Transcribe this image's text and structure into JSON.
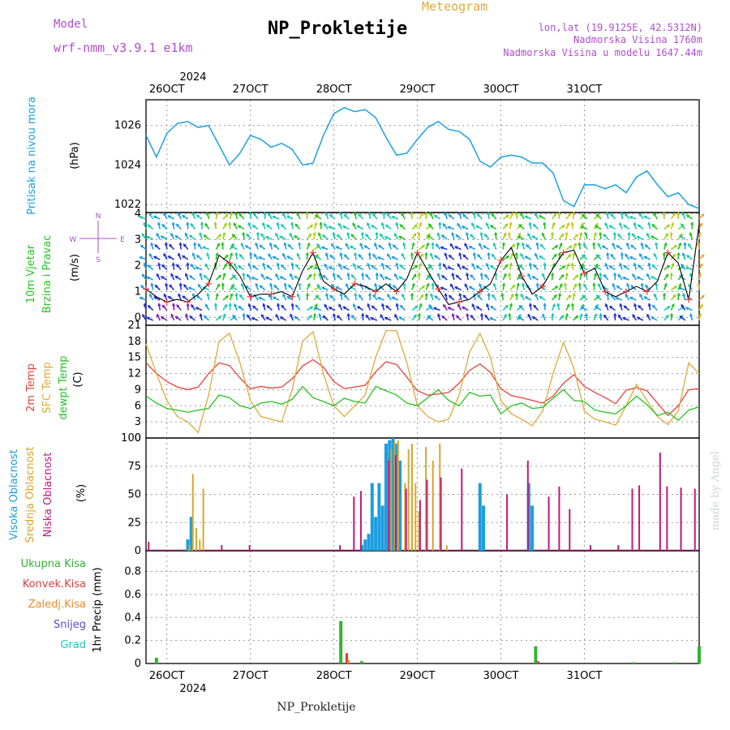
{
  "header": {
    "model_label": "Model",
    "model_name": "wrf-nmm_v3.9.1 e1km",
    "title": "NP_Prokletije",
    "meteogram": "Meteogram",
    "lonlat": "lon,lat (19.9125E, 42.5312N)",
    "altitude": "Nadmorska Visina 1760m",
    "altitude_model": "Nadmorska Visina u modelu 1647.44m",
    "year_top": "2024",
    "year_bottom": "2024",
    "footer": "NP_Prokletije",
    "watermark": "made by Angel"
  },
  "day_labels": [
    "26OCT",
    "27OCT",
    "28OCT",
    "29OCT",
    "30OCT",
    "31OCT"
  ],
  "panel_labels": {
    "pressure": [
      "Pritisak na nivou mora",
      "(hPa)"
    ],
    "wind": [
      "10m Vjetar",
      "Brzina i Pravac",
      "(m/s)"
    ],
    "wind_rose": [
      "N",
      "E",
      "W",
      "S"
    ],
    "temp": [
      "2m Temp",
      "SFC Temp",
      "dewpt Temp",
      "(C)"
    ],
    "cloud": [
      "Visoka Oblacnost",
      "Srednja Oblacnost",
      "Niska Oblacnost",
      "(%)"
    ],
    "precip": [
      "Ukupna Kisa",
      "Konvek.Kisa",
      "Zaledj.Kisa",
      "Snijeg",
      "Grad",
      "1hr Precip (mm)"
    ]
  },
  "colors": {
    "pressure": "#1aa0e6",
    "t2m": "#e8413c",
    "tsfc": "#e0a93a",
    "dewpt": "#22c41e",
    "cloud_high": "#1a9ee0",
    "cloud_mid": "#d9a52b",
    "cloud_low": "#c2177a",
    "rain_total": "#2fb52f",
    "rain_conv": "#e23b3b",
    "rain_frz": "#f08a2a",
    "snow": "#5a4ccf",
    "hail": "#2ac0c0",
    "purple_text": "#b24cd1",
    "orange_text": "#e0a93a"
  },
  "chart_data": [
    {
      "type": "line",
      "name": "pressure",
      "ylim": [
        1021.6,
        1027.3
      ],
      "yticks": [
        1022,
        1024,
        1026
      ],
      "x_hours": [
        0,
        3,
        6,
        9,
        12,
        15,
        18,
        21,
        24,
        27,
        30,
        33,
        36,
        39,
        42,
        45,
        48,
        51,
        54,
        57,
        60,
        63,
        66,
        69,
        72,
        75,
        78,
        81,
        84,
        87,
        90,
        93,
        96,
        99,
        102,
        105,
        108,
        111,
        114,
        117,
        120,
        123,
        126,
        129,
        132,
        135,
        138,
        141,
        144,
        147,
        150,
        153,
        156,
        159
      ],
      "values": [
        1025.5,
        1024.4,
        1025.6,
        1026.1,
        1026.2,
        1025.9,
        1026.0,
        1025.0,
        1024.0,
        1024.6,
        1025.5,
        1025.3,
        1024.9,
        1025.1,
        1024.8,
        1024.0,
        1024.1,
        1025.5,
        1026.6,
        1026.9,
        1026.7,
        1026.8,
        1026.4,
        1025.4,
        1024.5,
        1024.6,
        1025.3,
        1025.9,
        1026.2,
        1025.8,
        1025.7,
        1025.3,
        1024.2,
        1023.9,
        1024.4,
        1024.5,
        1024.4,
        1024.1,
        1024.1,
        1023.6,
        1022.2,
        1021.9,
        1023.0,
        1023.0,
        1022.8,
        1023.0,
        1022.6,
        1023.4,
        1023.7,
        1023.0,
        1022.4,
        1022.6,
        1022.0,
        1021.8
      ]
    },
    {
      "type": "line",
      "name": "10m wind speed",
      "ylim": [
        -0.3,
        4.05
      ],
      "yticks": [
        0,
        1,
        2,
        3,
        4
      ],
      "x_hours": [
        0,
        3,
        6,
        9,
        12,
        15,
        18,
        21,
        24,
        27,
        30,
        33,
        36,
        39,
        42,
        45,
        48,
        51,
        54,
        57,
        60,
        63,
        66,
        69,
        72,
        75,
        78,
        81,
        84,
        87,
        90,
        93,
        96,
        99,
        102,
        105,
        108,
        111,
        114,
        117,
        120,
        123,
        126,
        129,
        132,
        135,
        138,
        141,
        144,
        147,
        150,
        153,
        156,
        159
      ],
      "values": [
        1.1,
        0.8,
        0.6,
        0.7,
        0.6,
        0.9,
        1.3,
        2.4,
        2.1,
        1.6,
        0.8,
        0.9,
        0.9,
        1.0,
        0.8,
        1.8,
        2.5,
        1.4,
        1.1,
        0.9,
        1.3,
        1.2,
        1.0,
        1.3,
        1.0,
        1.5,
        2.5,
        1.8,
        1.1,
        0.5,
        0.6,
        0.7,
        1.0,
        1.3,
        2.2,
        2.7,
        1.6,
        0.9,
        1.2,
        1.9,
        2.5,
        2.6,
        1.7,
        1.9,
        1.0,
        0.8,
        1.0,
        1.2,
        1.0,
        1.4,
        2.5,
        2.1,
        0.7,
        3.6
      ]
    },
    {
      "type": "line",
      "name": "temperature",
      "ylim": [
        0,
        21
      ],
      "yticks": [
        0,
        3,
        6,
        9,
        12,
        15,
        18,
        21
      ],
      "x_hours": [
        0,
        3,
        6,
        9,
        12,
        15,
        18,
        21,
        24,
        27,
        30,
        33,
        36,
        39,
        42,
        45,
        48,
        51,
        54,
        57,
        60,
        63,
        66,
        69,
        72,
        75,
        78,
        81,
        84,
        87,
        90,
        93,
        96,
        99,
        102,
        105,
        108,
        111,
        114,
        117,
        120,
        123,
        126,
        129,
        132,
        135,
        138,
        141,
        144,
        147,
        150,
        153,
        156,
        159
      ],
      "series": [
        {
          "name": "2m Temp",
          "values": [
            14,
            12,
            10.5,
            9.5,
            9,
            9.5,
            12,
            14,
            13.5,
            11.2,
            9.2,
            9.6,
            9.3,
            9.5,
            11,
            13.4,
            14.6,
            13.2,
            10.5,
            9.2,
            9.5,
            9.8,
            12.3,
            14.2,
            13.7,
            11.3,
            8.8,
            8,
            8.2,
            8.5,
            10.2,
            12.6,
            13.8,
            12.2,
            9.2,
            7.9,
            7.5,
            7,
            6.5,
            7.8,
            10.2,
            11.8,
            9.6,
            8.5,
            7.5,
            6.4,
            8.9,
            9.4,
            8.8,
            6.5,
            4.2,
            6,
            9,
            9.2
          ]
        },
        {
          "name": "SFC Temp",
          "values": [
            17.5,
            12,
            7,
            4,
            3,
            1,
            8,
            18,
            19.5,
            14,
            7,
            4,
            3.5,
            3,
            9,
            18,
            19.8,
            12,
            6,
            4,
            6,
            8,
            15,
            20,
            20,
            14,
            6,
            4,
            3,
            3.5,
            8,
            16,
            19.5,
            15,
            7,
            4.5,
            3.5,
            2.3,
            5,
            12,
            17.8,
            13,
            5,
            3.5,
            3,
            2.4,
            6,
            10,
            7,
            4,
            2.5,
            5,
            14,
            12
          ]
        },
        {
          "name": "dewpt Temp",
          "values": [
            7.8,
            6.5,
            5.5,
            5.2,
            4.8,
            5.2,
            5.5,
            8,
            7.5,
            6,
            5.5,
            6.5,
            6.8,
            6.3,
            7.2,
            9.6,
            7.5,
            6.8,
            6,
            7.4,
            6.8,
            6.5,
            9.6,
            8.8,
            8,
            6.5,
            6,
            7.5,
            9,
            7,
            6,
            8.5,
            7.8,
            8,
            4.5,
            6,
            6.5,
            5.5,
            5.7,
            7.4,
            9,
            7,
            6.8,
            5.2,
            4.8,
            4.5,
            6,
            7.8,
            6.2,
            4.2,
            4.8,
            3.3,
            5.2,
            5.8
          ]
        }
      ]
    },
    {
      "type": "bar",
      "name": "cloud cover",
      "ylim": [
        0,
        100
      ],
      "yticks": [
        0,
        25,
        50,
        75,
        100
      ],
      "series": [
        {
          "name": "Visoka Oblacnost",
          "x_hours": [
            12,
            13,
            62,
            63,
            64,
            65,
            66,
            67,
            68,
            69,
            70,
            71,
            72,
            73,
            96,
            97,
            110,
            111
          ],
          "values": [
            10,
            30,
            5,
            10,
            15,
            60,
            30,
            60,
            40,
            95,
            98,
            100,
            95,
            80,
            60,
            40,
            60,
            40
          ]
        },
        {
          "name": "Srednja Oblacnost",
          "x_hours": [
            12,
            13,
            14,
            15,
            16,
            70,
            71,
            72,
            74,
            75,
            76,
            77,
            78,
            80,
            82,
            84,
            86
          ],
          "values": [
            5,
            68,
            20,
            10,
            55,
            90,
            97,
            98,
            60,
            90,
            95,
            60,
            35,
            92,
            80,
            95,
            5
          ]
        },
        {
          "name": "Niska Oblacnost",
          "x_hours": [
            1,
            22,
            30,
            56,
            60,
            62,
            70,
            72,
            75,
            79,
            81,
            85,
            91,
            104,
            110,
            116,
            119,
            122,
            128,
            136,
            140,
            142,
            148,
            150,
            154,
            158
          ],
          "values": [
            8,
            5,
            5,
            5,
            48,
            53,
            80,
            85,
            55,
            45,
            63,
            65,
            73,
            50,
            80,
            48,
            57,
            37,
            5,
            5,
            55,
            58,
            87,
            57,
            56,
            55
          ]
        }
      ]
    },
    {
      "type": "bar",
      "name": "1hr precipitation",
      "ylim": [
        0,
        0.98
      ],
      "yticks": [
        0,
        0.2,
        0.4,
        0.6,
        0.8
      ],
      "series": [
        {
          "name": "Ukupna Kisa",
          "x_hours": [
            3,
            56,
            62,
            112,
            140,
            152,
            159
          ],
          "values": [
            0.05,
            0.37,
            0.02,
            0.15,
            0.01,
            0.01,
            0.15
          ]
        },
        {
          "name": "Konvek.Kisa",
          "x_hours": [
            57,
            112
          ],
          "values": [
            0.09,
            0.02
          ]
        },
        {
          "name": "Zaledj.Kisa",
          "x_hours": [
            58
          ],
          "values": [
            0.03
          ]
        }
      ]
    }
  ]
}
